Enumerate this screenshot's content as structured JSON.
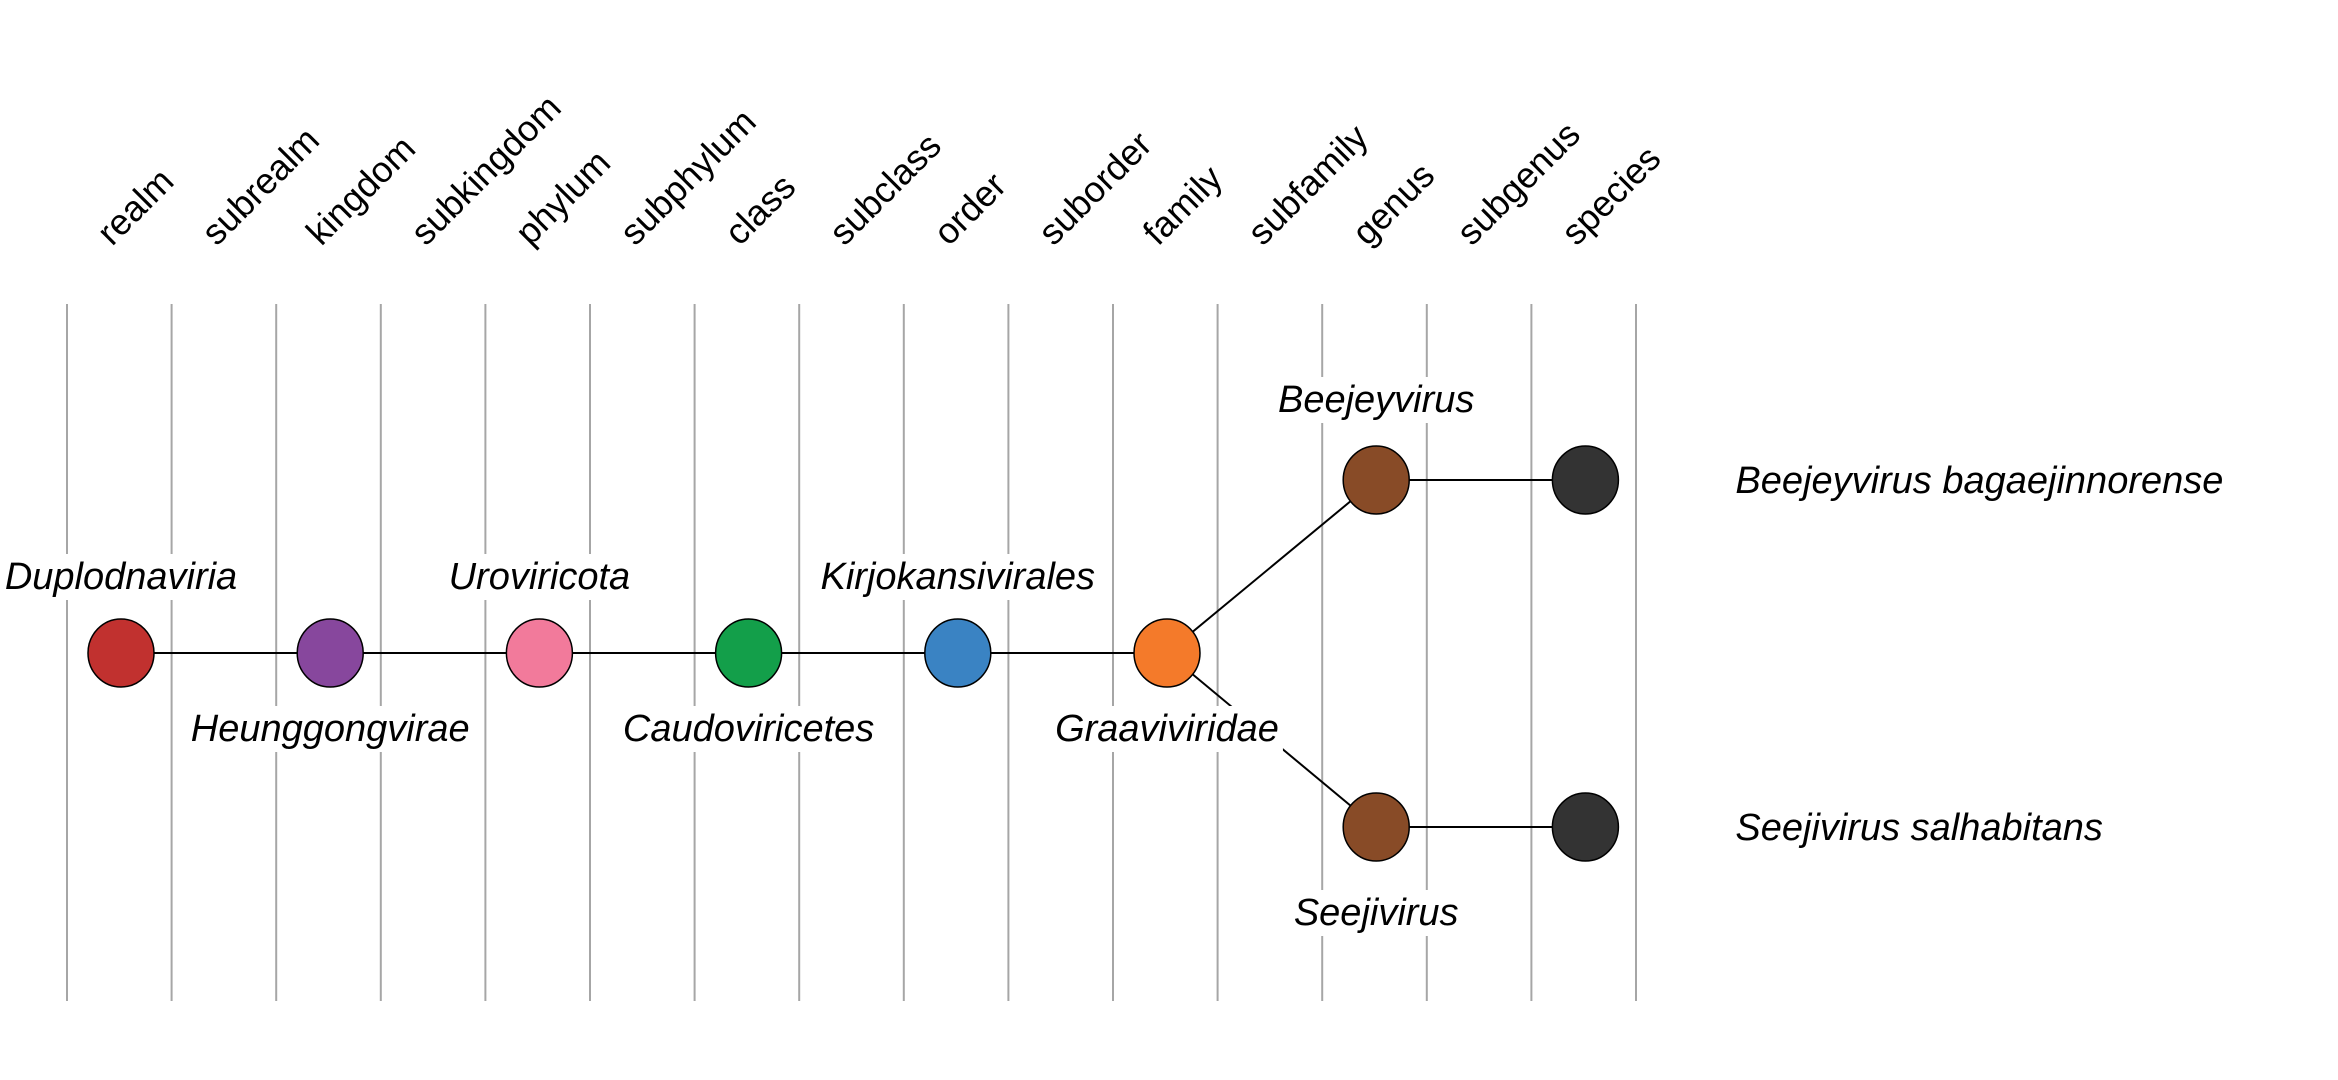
{
  "ranks": [
    "realm",
    "subrealm",
    "kingdom",
    "subkingdom",
    "phylum",
    "subphylum",
    "class",
    "subclass",
    "order",
    "suborder",
    "family",
    "subfamily",
    "genus",
    "subgenus",
    "species"
  ],
  "nodes": [
    {
      "id": "duplodnaviria",
      "name": "Duplodnaviria",
      "rank": "realm",
      "color": "#c1312f",
      "label_side": "above",
      "branch": "trunk"
    },
    {
      "id": "heunggongvirae",
      "name": "Heunggongvirae",
      "rank": "kingdom",
      "color": "#87479d",
      "label_side": "below",
      "branch": "trunk"
    },
    {
      "id": "uroviricota",
      "name": "Uroviricota",
      "rank": "phylum",
      "color": "#f27a9b",
      "label_side": "above",
      "branch": "trunk"
    },
    {
      "id": "caudoviricetes",
      "name": "Caudoviricetes",
      "rank": "class",
      "color": "#139f4a",
      "label_side": "below",
      "branch": "trunk"
    },
    {
      "id": "kirjokansivirales",
      "name": "Kirjokansivirales",
      "rank": "order",
      "color": "#3a83c3",
      "label_side": "above",
      "branch": "trunk"
    },
    {
      "id": "graaviviridae",
      "name": "Graaviviridae",
      "rank": "family",
      "color": "#f47a2a",
      "label_side": "below",
      "branch": "trunk"
    },
    {
      "id": "beejeyvirus",
      "name": "Beejeyvirus",
      "rank": "genus",
      "color": "#884b27",
      "label_side": "above",
      "branch": "upper"
    },
    {
      "id": "seejivirus",
      "name": "Seejivirus",
      "rank": "genus",
      "color": "#884b27",
      "label_side": "below",
      "branch": "lower"
    },
    {
      "id": "beejeyvirus-bagaejinnorense",
      "name": "Beejeyvirus bagaejinnorense",
      "rank": "species",
      "color": "#333333",
      "label_side": "right",
      "branch": "upper"
    },
    {
      "id": "seejivirus-salhabitans",
      "name": "Seejivirus salhabitans",
      "rank": "species",
      "color": "#333333",
      "label_side": "right",
      "branch": "lower"
    }
  ],
  "edges": [
    [
      "duplodnaviria",
      "heunggongvirae"
    ],
    [
      "heunggongvirae",
      "uroviricota"
    ],
    [
      "uroviricota",
      "caudoviricetes"
    ],
    [
      "caudoviricetes",
      "kirjokansivirales"
    ],
    [
      "kirjokansivirales",
      "graaviviridae"
    ],
    [
      "graaviviridae",
      "beejeyvirus"
    ],
    [
      "graaviviridae",
      "seejivirus"
    ],
    [
      "beejeyvirus",
      "beejeyvirus-bagaejinnorense"
    ],
    [
      "seejivirus",
      "seejivirus-salhabitans"
    ]
  ]
}
